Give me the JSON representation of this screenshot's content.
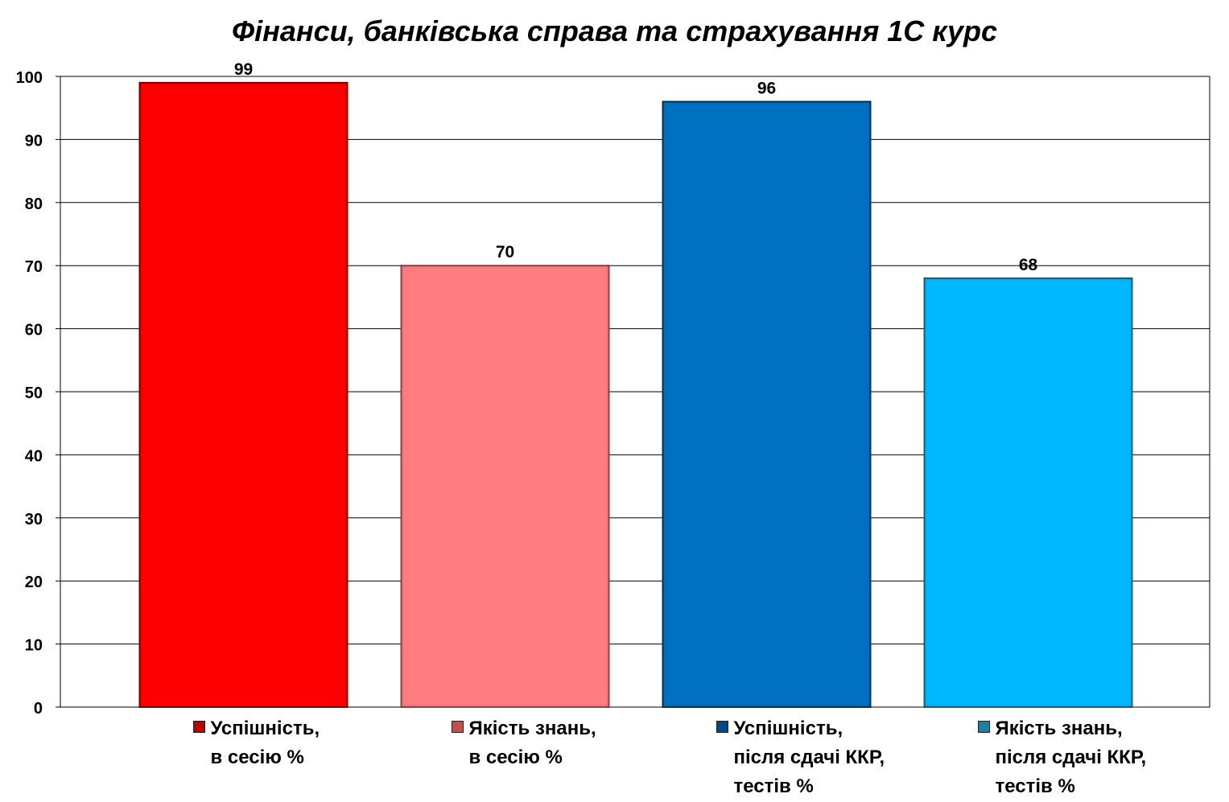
{
  "chart_data": {
    "type": "bar",
    "title": "Фінанси, банківська справа та страхування 1С курс",
    "xlabel": "",
    "ylabel": "",
    "ylim": [
      0,
      100
    ],
    "yticks": [
      0,
      10,
      20,
      30,
      40,
      50,
      60,
      70,
      80,
      90,
      100
    ],
    "grid": true,
    "legend_position": "bottom",
    "series": [
      {
        "name": "Успішність,\nв сесію %",
        "value": 99,
        "color": "#ff0000",
        "shadow": "#8b0000"
      },
      {
        "name": "Якість знань,\nв сесію %",
        "value": 70,
        "color": "#ff7c80",
        "shadow": "#a04a4c"
      },
      {
        "name": "Успішність,\nпісля сдачі ККР,\nтестів %",
        "value": 96,
        "color": "#0070c0",
        "shadow": "#003a66"
      },
      {
        "name": "Якість знань,\nпісля сдачі ККР,\nтестів %",
        "value": 68,
        "color": "#00b8ff",
        "shadow": "#1a6a8a"
      }
    ]
  }
}
